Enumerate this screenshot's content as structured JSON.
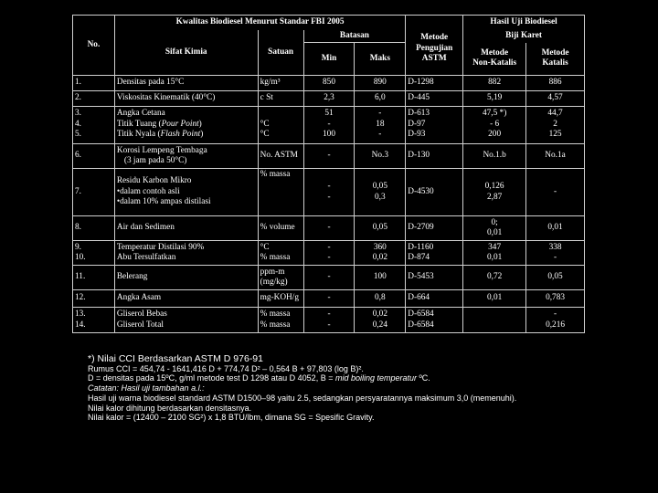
{
  "header": {
    "quality_title": "Kwalitas Biodiesel Menurut Standar FBI 2005",
    "hasil_title_1": "Hasil Uji Biodiesel",
    "hasil_title_2": "Biji Karet",
    "no": "No.",
    "sifat": "Sifat Kimia",
    "satuan": "Satuan",
    "batasan": "Batasan",
    "min": "Min",
    "maks": "Maks",
    "metode_1": "Metode",
    "metode_2": "Pengujian",
    "metode_3": "ASTM",
    "nonkat_1": "Metode",
    "nonkat_2": "Non-Katalis",
    "kat_1": "Metode",
    "kat_2": "Katalis"
  },
  "rows": [
    {
      "no": "1.",
      "sifat": "Densitas pada 15°C",
      "satuan": "kg/m³",
      "min": "850",
      "maks": "890",
      "metode": "D-1298",
      "nonkat": "882",
      "kat": "886"
    },
    {
      "no": "2.",
      "sifat": "Viskositas Kinematik (40°C)",
      "satuan": "c St",
      "min": "2,3",
      "maks": "6,0",
      "metode": "D-445",
      "nonkat": "5,19",
      "kat": "4,57"
    },
    {
      "no": "3.",
      "no2": "4.",
      "no3": "5.",
      "sifat": "Angka Cetana",
      "sifat2_a": "Titik Tuang (",
      "sifat2_i": "Pour Point",
      "sifat2_b": ")",
      "sifat3_a": "Titik Nyala (",
      "sifat3_i": "Flash Point",
      "sifat3_b": ")",
      "satuan": "",
      "satuan2": "°C",
      "satuan3": "°C",
      "min": "51",
      "min2": "-",
      "min3": "100",
      "maks": "-",
      "maks2": "18",
      "maks3": "-",
      "metode": "D-613",
      "metode2": "D-97",
      "metode3": "D-93",
      "nonkat": "47,5 *)",
      "nonkat2": "- 6",
      "nonkat3": "200",
      "kat": "44,7",
      "kat2": "2",
      "kat3": "125"
    },
    {
      "no": "6.",
      "sifat": "Korosi Lempeng Tembaga",
      "sifat2": "(3 jam pada 50°C)",
      "satuan": "No. ASTM",
      "min": "-",
      "maks": "No.3",
      "metode": "D-130",
      "nonkat": "No.1.b",
      "kat": "No.1a"
    },
    {
      "no": "7.",
      "sifat": "Residu Karbon Mikro",
      "sifat2": "dalam contoh asli",
      "sifat3": "dalam 10% ampas distilasi",
      "satuan": "% massa",
      "min": "-",
      "min2": "-",
      "maks": "0,05",
      "maks2": "0,3",
      "metode": "D-4530",
      "nonkat": "0,126",
      "nonkat2": "2,87",
      "kat": "-"
    },
    {
      "no": "8.",
      "sifat": "Air dan Sedimen",
      "satuan": "% volume",
      "min": "-",
      "maks": "0,05",
      "metode": "D-2709",
      "nonkat": "0;",
      "nonkat2": "0,01",
      "kat": "0,01"
    },
    {
      "no": "9.",
      "no2": "10.",
      "sifat": "Temperatur Distilasi 90%",
      "sifat2": "Abu Tersulfatkan",
      "satuan": "°C",
      "satuan2": "% massa",
      "min": "-",
      "min2": "-",
      "maks": "360",
      "maks2": "0,02",
      "metode": "D-1160",
      "metode2": "D-874",
      "nonkat": "347",
      "nonkat2": "0,01",
      "kat": "338",
      "kat2": "-"
    },
    {
      "no": "11.",
      "sifat": "Belerang",
      "satuan": "ppm-m",
      "satuan2": "(mg/kg)",
      "min": "-",
      "maks": "100",
      "metode": "D-5453",
      "nonkat": "0,72",
      "kat": "0,05"
    },
    {
      "no": "12.",
      "sifat": "Angka Asam",
      "satuan": "mg-KOH/g",
      "min": "-",
      "maks": "0,8",
      "metode": "D-664",
      "nonkat": "0,01",
      "kat": "0,783"
    },
    {
      "no": "13.",
      "no2": "14.",
      "sifat": "Gliserol Bebas",
      "sifat2": "Gliserol Total",
      "satuan": "% massa",
      "satuan2": "% massa",
      "min": "-",
      "min2": "-",
      "maks": "0,02",
      "maks2": "0,24",
      "metode": "D-6584",
      "metode2": "D-6584",
      "nonkat": "",
      "kat": "-",
      "kat2": "0,216"
    }
  ],
  "notes": {
    "line1": "*) Nilai CCI Berdasarkan ASTM D 976-91",
    "line2": "Rumus CCI = 454,74 - 1641,416 D + 774,74 D² – 0,564 B + 97,803 (log B)².",
    "line3a": "D = densitas pada 15ºC, g/ml metode test D 1298 atau D 4052, B = ",
    "line3i": "mid boiling temperatur",
    "line3b": " ºC.",
    "line4": "Catatan: Hasil uji tambahan a.l.:",
    "line5": "Hasil uji warna biodiesel standard ASTM D1500–98 yaitu 2.5, sedangkan persyaratannya maksimum 3,0 (memenuhi).",
    "line6": "Nilai kalor dihitung berdasarkan densitasnya.",
    "line7": "Nilai kalor = (12400 – 2100 SG²) x 1,8 BTU/lbm, dimana SG = Spesific Gravity."
  }
}
